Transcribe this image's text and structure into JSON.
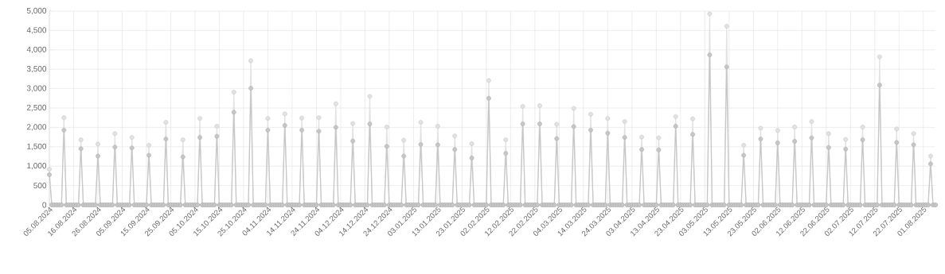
{
  "chart_data": {
    "type": "line",
    "marker": "circle",
    "grid": true,
    "ylim": [
      0,
      5000
    ],
    "yticks": [
      0,
      500,
      {
        "value": 1000,
        "label": "1,000"
      },
      {
        "value": 1500,
        "label": "1,500"
      },
      {
        "value": 2000,
        "label": "2,000"
      },
      {
        "value": 2500,
        "label": "2,500"
      },
      {
        "value": 3000,
        "label": "3,000"
      },
      {
        "value": 3500,
        "label": "3,500"
      },
      {
        "value": 4000,
        "label": "4,000"
      },
      {
        "value": 4500,
        "label": "4,500"
      },
      {
        "value": 5000,
        "label": "5,000"
      }
    ],
    "categories": [
      "05.08.2024",
      null,
      null,
      null,
      null,
      null,
      null,
      null,
      null,
      null,
      "16.08.2024",
      null,
      null,
      null,
      null,
      null,
      null,
      null,
      null,
      null,
      "26.08.2024",
      null,
      null,
      null,
      null,
      null,
      null,
      null,
      null,
      null,
      "05.09.2024",
      null,
      null,
      null,
      null,
      null,
      null,
      null,
      null,
      null,
      "15.09.2024",
      null,
      null,
      null,
      null,
      null,
      null,
      null,
      null,
      null,
      "25.09.2024",
      null,
      null,
      null,
      null,
      null,
      null,
      null,
      null,
      null,
      "05.10.2024",
      null,
      null,
      null,
      null,
      null,
      null,
      null,
      null,
      null,
      "15.10.2024",
      null,
      null,
      null,
      null,
      null,
      null,
      null,
      null,
      null,
      "25.10.2024",
      null,
      null,
      null,
      null,
      null,
      null,
      null,
      null,
      null,
      "04.11.2024",
      null,
      null,
      null,
      null,
      null,
      null,
      null,
      null,
      null,
      "14.11.2024",
      null,
      null,
      null,
      null,
      null,
      null,
      null,
      null,
      null,
      "24.11.2024",
      null,
      null,
      null,
      null,
      null,
      null,
      null,
      null,
      null,
      "04.12.2024",
      null,
      null,
      null,
      null,
      null,
      null,
      null,
      null,
      null,
      "14.12.2024",
      null,
      null,
      null,
      null,
      null,
      null,
      null,
      null,
      null,
      "24.12.2024",
      null,
      null,
      null,
      null,
      null,
      null,
      null,
      null,
      null,
      "03.01.2025",
      null,
      null,
      null,
      null,
      null,
      null,
      null,
      null,
      null,
      "13.01.2025",
      null,
      null,
      null,
      null,
      null,
      null,
      null,
      null,
      null,
      "23.01.2025",
      null,
      null,
      null,
      null,
      null,
      null,
      null,
      null,
      null,
      "02.02.2025",
      null,
      null,
      null,
      null,
      null,
      null,
      null,
      null,
      null,
      "12.02.2025",
      null,
      null,
      null,
      null,
      null,
      null,
      null,
      null,
      null,
      "22.02.2025",
      null,
      null,
      null,
      null,
      null,
      null,
      null,
      null,
      null,
      "04.03.2025",
      null,
      null,
      null,
      null,
      null,
      null,
      null,
      null,
      null,
      "14.03.2025",
      null,
      null,
      null,
      null,
      null,
      null,
      null,
      null,
      null,
      "24.03.2025",
      null,
      null,
      null,
      null,
      null,
      null,
      null,
      null,
      null,
      "03.04.2025",
      null,
      null,
      null,
      null,
      null,
      null,
      null,
      null,
      null,
      "13.04.2025",
      null,
      null,
      null,
      null,
      null,
      null,
      null,
      null,
      null,
      "23.04.2025",
      null,
      null,
      null,
      null,
      null,
      null,
      null,
      null,
      null,
      "03.05.2025",
      null,
      null,
      null,
      null,
      null,
      null,
      null,
      null,
      null,
      "13.05.2025",
      null,
      null,
      null,
      null,
      null,
      null,
      null,
      null,
      null,
      "23.05.2025",
      null,
      null,
      null,
      null,
      null,
      null,
      null,
      null,
      null,
      "02.06.2025",
      null,
      null,
      null,
      null,
      null,
      null,
      null,
      null,
      null,
      "12.06.2025",
      null,
      null,
      null,
      null,
      null,
      null,
      null,
      null,
      null,
      "22.06.2025",
      null,
      null,
      null,
      null,
      null,
      null,
      null,
      null,
      null,
      "02.07.2025",
      null,
      null,
      null,
      null,
      null,
      null,
      null,
      null,
      null,
      "12.07.2025",
      null,
      null,
      null,
      null,
      null,
      null,
      null,
      null,
      null,
      "22.07.2025",
      null,
      null,
      null,
      null,
      null,
      null,
      null,
      null,
      null,
      "01.08.2025",
      null,
      null,
      null,
      null,
      null
    ],
    "series": [
      {
        "color": "#e2e2e2",
        "values": [
          920,
          0,
          0,
          0,
          0,
          0,
          2250,
          0,
          0,
          0,
          0,
          0,
          0,
          1680,
          0,
          0,
          0,
          0,
          0,
          0,
          1570,
          0,
          0,
          0,
          0,
          0,
          0,
          1840,
          0,
          0,
          0,
          0,
          0,
          0,
          1740,
          0,
          0,
          0,
          0,
          0,
          0,
          1540,
          0,
          0,
          0,
          0,
          0,
          0,
          2130,
          0,
          0,
          0,
          0,
          0,
          0,
          1680,
          0,
          0,
          0,
          0,
          0,
          0,
          2230,
          0,
          0,
          0,
          0,
          0,
          0,
          2030,
          0,
          0,
          0,
          0,
          0,
          0,
          2910,
          0,
          0,
          0,
          0,
          0,
          0,
          3720,
          0,
          0,
          0,
          0,
          0,
          0,
          2230,
          0,
          0,
          0,
          0,
          0,
          0,
          2350,
          0,
          0,
          0,
          0,
          0,
          0,
          2240,
          0,
          0,
          0,
          0,
          0,
          0,
          2250,
          0,
          0,
          0,
          0,
          0,
          0,
          2610,
          0,
          0,
          0,
          0,
          0,
          0,
          2100,
          0,
          0,
          0,
          0,
          0,
          0,
          2800,
          0,
          0,
          0,
          0,
          0,
          0,
          2010,
          0,
          0,
          0,
          0,
          0,
          0,
          1670,
          0,
          0,
          0,
          0,
          0,
          0,
          2130,
          0,
          0,
          0,
          0,
          0,
          0,
          2030,
          0,
          0,
          0,
          0,
          0,
          0,
          1780,
          0,
          0,
          0,
          0,
          0,
          0,
          1580,
          0,
          0,
          0,
          0,
          0,
          0,
          3210,
          0,
          0,
          0,
          0,
          0,
          0,
          1680,
          0,
          0,
          0,
          0,
          0,
          0,
          2540,
          0,
          0,
          0,
          0,
          0,
          0,
          2560,
          0,
          0,
          0,
          0,
          0,
          0,
          2080,
          0,
          0,
          0,
          0,
          0,
          0,
          2490,
          0,
          0,
          0,
          0,
          0,
          0,
          2340,
          0,
          0,
          0,
          0,
          0,
          0,
          2230,
          0,
          0,
          0,
          0,
          0,
          0,
          2150,
          0,
          0,
          0,
          0,
          0,
          0,
          1750,
          0,
          0,
          0,
          0,
          0,
          0,
          1730,
          0,
          0,
          0,
          0,
          0,
          0,
          2280,
          0,
          0,
          0,
          0,
          0,
          0,
          2220,
          0,
          0,
          0,
          0,
          0,
          0,
          4930,
          0,
          0,
          0,
          0,
          0,
          0,
          4610,
          0,
          0,
          0,
          0,
          0,
          0,
          1540,
          0,
          0,
          0,
          0,
          0,
          0,
          1980,
          0,
          0,
          0,
          0,
          0,
          0,
          1920,
          0,
          0,
          0,
          0,
          0,
          0,
          2010,
          0,
          0,
          0,
          0,
          0,
          0,
          2150,
          0,
          0,
          0,
          0,
          0,
          0,
          1840,
          0,
          0,
          0,
          0,
          0,
          0,
          1690,
          0,
          0,
          0,
          0,
          0,
          0,
          2010,
          0,
          0,
          0,
          0,
          0,
          0,
          3820,
          0,
          0,
          0,
          0,
          0,
          0,
          1960,
          0,
          0,
          0,
          0,
          0,
          0,
          1840,
          0,
          0,
          0,
          0,
          0,
          0,
          1260,
          0,
          0
        ]
      },
      {
        "color": "#c6c6c6",
        "values": [
          780,
          0,
          0,
          0,
          0,
          0,
          1930,
          0,
          0,
          0,
          0,
          0,
          0,
          1450,
          0,
          0,
          0,
          0,
          0,
          0,
          1260,
          0,
          0,
          0,
          0,
          0,
          0,
          1490,
          0,
          0,
          0,
          0,
          0,
          0,
          1470,
          0,
          0,
          0,
          0,
          0,
          0,
          1280,
          0,
          0,
          0,
          0,
          0,
          0,
          1700,
          0,
          0,
          0,
          0,
          0,
          0,
          1240,
          0,
          0,
          0,
          0,
          0,
          0,
          1740,
          0,
          0,
          0,
          0,
          0,
          0,
          1770,
          0,
          0,
          0,
          0,
          0,
          0,
          2390,
          0,
          0,
          0,
          0,
          0,
          0,
          3010,
          0,
          0,
          0,
          0,
          0,
          0,
          1930,
          0,
          0,
          0,
          0,
          0,
          0,
          2050,
          0,
          0,
          0,
          0,
          0,
          0,
          1930,
          0,
          0,
          0,
          0,
          0,
          0,
          1900,
          0,
          0,
          0,
          0,
          0,
          0,
          2000,
          0,
          0,
          0,
          0,
          0,
          0,
          1650,
          0,
          0,
          0,
          0,
          0,
          0,
          2090,
          0,
          0,
          0,
          0,
          0,
          0,
          1510,
          0,
          0,
          0,
          0,
          0,
          0,
          1260,
          0,
          0,
          0,
          0,
          0,
          0,
          1560,
          0,
          0,
          0,
          0,
          0,
          0,
          1550,
          0,
          0,
          0,
          0,
          0,
          0,
          1430,
          0,
          0,
          0,
          0,
          0,
          0,
          1210,
          0,
          0,
          0,
          0,
          0,
          0,
          2750,
          0,
          0,
          0,
          0,
          0,
          0,
          1330,
          0,
          0,
          0,
          0,
          0,
          0,
          2090,
          0,
          0,
          0,
          0,
          0,
          0,
          2090,
          0,
          0,
          0,
          0,
          0,
          0,
          1710,
          0,
          0,
          0,
          0,
          0,
          0,
          2020,
          0,
          0,
          0,
          0,
          0,
          0,
          1930,
          0,
          0,
          0,
          0,
          0,
          0,
          1850,
          0,
          0,
          0,
          0,
          0,
          0,
          1740,
          0,
          0,
          0,
          0,
          0,
          0,
          1430,
          0,
          0,
          0,
          0,
          0,
          0,
          1420,
          0,
          0,
          0,
          0,
          0,
          0,
          2030,
          0,
          0,
          0,
          0,
          0,
          0,
          1820,
          0,
          0,
          0,
          0,
          0,
          0,
          3870,
          0,
          0,
          0,
          0,
          0,
          0,
          3560,
          0,
          0,
          0,
          0,
          0,
          0,
          1280,
          0,
          0,
          0,
          0,
          0,
          0,
          1700,
          0,
          0,
          0,
          0,
          0,
          0,
          1600,
          0,
          0,
          0,
          0,
          0,
          0,
          1640,
          0,
          0,
          0,
          0,
          0,
          0,
          1730,
          0,
          0,
          0,
          0,
          0,
          0,
          1480,
          0,
          0,
          0,
          0,
          0,
          0,
          1440,
          0,
          0,
          0,
          0,
          0,
          0,
          1680,
          0,
          0,
          0,
          0,
          0,
          0,
          3090,
          0,
          0,
          0,
          0,
          0,
          0,
          1610,
          0,
          0,
          0,
          0,
          0,
          0,
          1550,
          0,
          0,
          0,
          0,
          0,
          0,
          1060,
          0,
          0
        ]
      }
    ]
  }
}
